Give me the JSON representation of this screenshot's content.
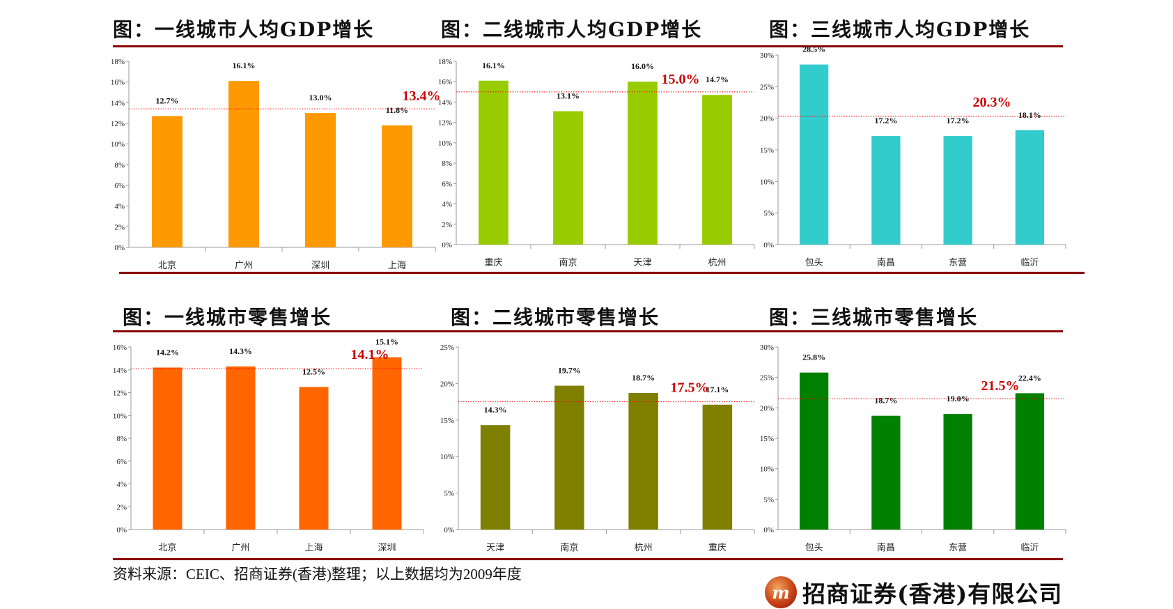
{
  "colors": {
    "rule": "#8B0000",
    "avg_line": "#FF0000",
    "avg_label": "#CC0000"
  },
  "source_note": "资料来源：CEIC、招商证券(香港)整理；以上数据均为2009年度",
  "logo_text": "招商证券(香港)有限公司",
  "chart_data": [
    {
      "type": "bar",
      "title": "图：一线城市人均GDP增长",
      "categories": [
        "北京",
        "广州",
        "深圳",
        "上海"
      ],
      "values": [
        12.7,
        16.1,
        13.0,
        11.8
      ],
      "value_labels": [
        "12.7%",
        "16.1%",
        "13.0%",
        "11.8%"
      ],
      "average": 13.4,
      "average_label": "13.4%",
      "ylim": [
        0,
        18
      ],
      "yticks": [
        "0%",
        "2%",
        "4%",
        "6%",
        "8%",
        "10%",
        "12%",
        "14%",
        "16%",
        "18%"
      ],
      "ystep": 2,
      "color": "#FF9900"
    },
    {
      "type": "bar",
      "title": "图：二线城市人均GDP增长",
      "categories": [
        "重庆",
        "南京",
        "天津",
        "杭州"
      ],
      "values": [
        16.1,
        13.1,
        16.0,
        14.7
      ],
      "value_labels": [
        "16.1%",
        "13.1%",
        "16.0%",
        "14.7%"
      ],
      "average": 15.0,
      "average_label": "15.0%",
      "ylim": [
        0,
        18
      ],
      "yticks": [
        "0%",
        "2%",
        "4%",
        "6%",
        "8%",
        "10%",
        "12%",
        "14%",
        "16%",
        "18%"
      ],
      "ystep": 2,
      "color": "#99CC00"
    },
    {
      "type": "bar",
      "title": "图：三线城市人均GDP增长",
      "categories": [
        "包头",
        "南昌",
        "东营",
        "临沂"
      ],
      "values": [
        28.5,
        17.2,
        17.2,
        18.1
      ],
      "value_labels": [
        "28.5%",
        "17.2%",
        "17.2%",
        "18.1%"
      ],
      "average": 20.3,
      "average_label": "20.3%",
      "ylim": [
        0,
        30
      ],
      "yticks": [
        "0%",
        "5%",
        "10%",
        "15%",
        "20%",
        "25%",
        "30%"
      ],
      "ystep": 5,
      "color": "#33CCCC"
    },
    {
      "type": "bar",
      "title": "图：一线城市零售增长",
      "categories": [
        "北京",
        "广州",
        "上海",
        "深圳"
      ],
      "values": [
        14.2,
        14.3,
        12.5,
        15.1
      ],
      "value_labels": [
        "14.2%",
        "14.3%",
        "12.5%",
        "15.1%"
      ],
      "average": 14.1,
      "average_label": "14.1%",
      "ylim": [
        0,
        16
      ],
      "yticks": [
        "0%",
        "2%",
        "4%",
        "6%",
        "8%",
        "10%",
        "12%",
        "14%",
        "16%"
      ],
      "ystep": 2,
      "color": "#FF6600"
    },
    {
      "type": "bar",
      "title": "图：二线城市零售增长",
      "categories": [
        "天津",
        "南京",
        "杭州",
        "重庆"
      ],
      "values": [
        14.3,
        19.7,
        18.7,
        17.1
      ],
      "value_labels": [
        "14.3%",
        "19.7%",
        "18.7%",
        "17.1%"
      ],
      "average": 17.5,
      "average_label": "17.5%",
      "ylim": [
        0,
        25
      ],
      "yticks": [
        "0%",
        "5%",
        "10%",
        "15%",
        "20%",
        "25%"
      ],
      "ystep": 5,
      "color": "#808000"
    },
    {
      "type": "bar",
      "title": "图：三线城市零售增长",
      "categories": [
        "包头",
        "南昌",
        "东营",
        "临沂"
      ],
      "values": [
        25.8,
        18.7,
        19.0,
        22.4
      ],
      "value_labels": [
        "25.8%",
        "18.7%",
        "19.0%",
        "22.4%"
      ],
      "average": 21.5,
      "average_label": "21.5%",
      "ylim": [
        0,
        30
      ],
      "yticks": [
        "0%",
        "5%",
        "10%",
        "15%",
        "20%",
        "25%",
        "30%"
      ],
      "ystep": 5,
      "color": "#008000"
    }
  ]
}
